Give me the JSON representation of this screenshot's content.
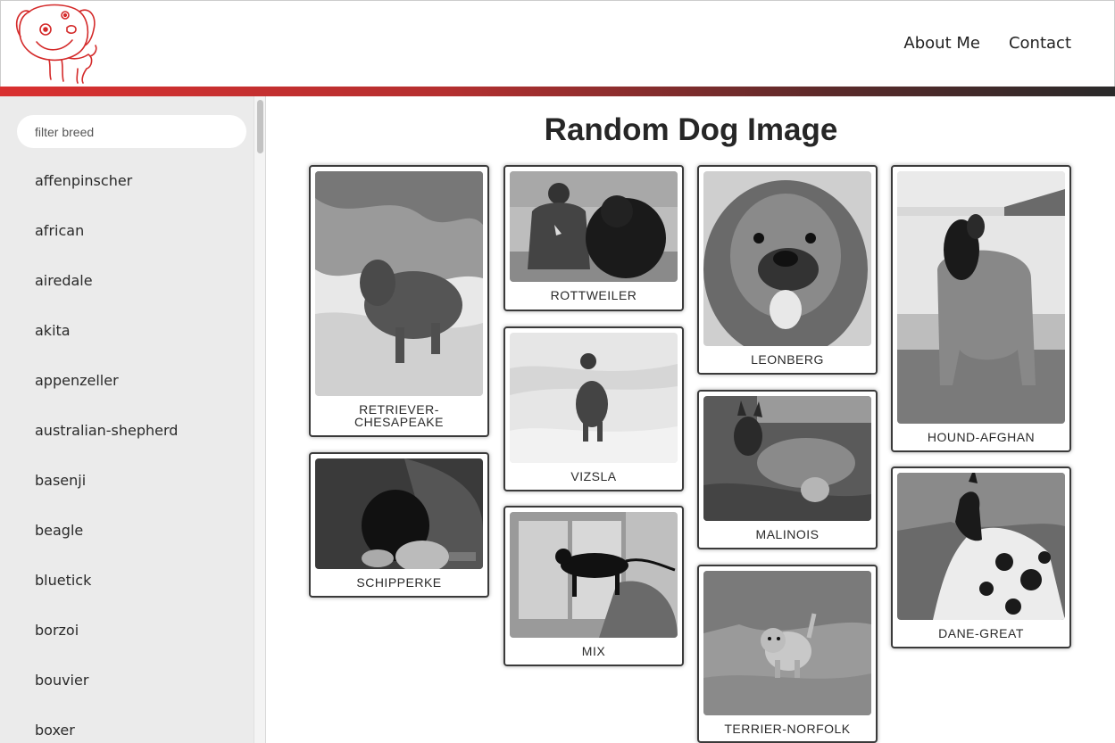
{
  "header": {
    "logo_icon": "cartoon-dog-logo",
    "brand_color": "#d93030",
    "nav": [
      {
        "label": "About Me"
      },
      {
        "label": "Contact"
      }
    ]
  },
  "sidebar": {
    "filter_placeholder": "filter breed",
    "breeds": [
      "affenpinscher",
      "african",
      "airedale",
      "akita",
      "appenzeller",
      "australian-shepherd",
      "basenji",
      "beagle",
      "bluetick",
      "borzoi",
      "bouvier",
      "boxer"
    ]
  },
  "main": {
    "title": "Random Dog Image",
    "cards": [
      {
        "caption": "RETRIEVER-CHESAPEAKE"
      },
      {
        "caption": "SCHIPPERKE"
      },
      {
        "caption": "ROTTWEILER"
      },
      {
        "caption": "VIZSLA"
      },
      {
        "caption": "MIX"
      },
      {
        "caption": "LEONBERG"
      },
      {
        "caption": "MALINOIS"
      },
      {
        "caption": "TERRIER-NORFOLK"
      },
      {
        "caption": "HOUND-AFGHAN"
      },
      {
        "caption": "DANE-GREAT"
      }
    ]
  }
}
